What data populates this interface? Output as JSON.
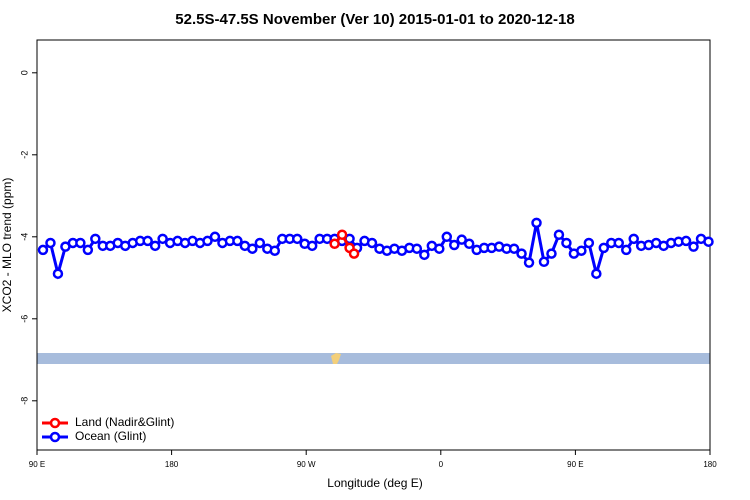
{
  "chart_data": {
    "type": "line",
    "title": "52.5S-47.5S November (Ver 10)   2015-01-01 to 2020-12-18",
    "xlabel": "Longitude (deg E)",
    "ylabel": "XCO2 - MLO trend (ppm)",
    "xlim": [
      90,
      540
    ],
    "xticks": [
      {
        "value": 90,
        "label": "90 E"
      },
      {
        "value": 180,
        "label": "180"
      },
      {
        "value": 270,
        "label": "90 W"
      },
      {
        "value": 360,
        "label": "0"
      },
      {
        "value": 450,
        "label": "90 E"
      },
      {
        "value": 540,
        "label": "180"
      }
    ],
    "ylim": [
      -9.2,
      0.8
    ],
    "yticks": [
      0,
      -2,
      -4,
      -6,
      -8
    ],
    "legend": "bottom-left",
    "series": [
      {
        "name": "Land (Nadir&Glint)",
        "color": "#ff0000",
        "x": [
          289,
          294,
          299,
          302
        ],
        "values": [
          -4.17,
          -3.95,
          -4.27,
          -4.41
        ]
      },
      {
        "name": "Ocean (Glint)",
        "color": "#0000ff",
        "x": [
          94,
          99,
          104,
          109,
          114,
          119,
          124,
          129,
          134,
          139,
          144,
          149,
          154,
          159,
          164,
          169,
          174,
          179,
          184,
          189,
          194,
          199,
          204,
          209,
          214,
          219,
          224,
          229,
          234,
          239,
          244,
          249,
          254,
          259,
          264,
          269,
          274,
          279,
          284,
          289,
          294,
          299,
          304,
          309,
          314,
          319,
          324,
          329,
          334,
          339,
          344,
          349,
          354,
          359,
          364,
          369,
          374,
          379,
          384,
          389,
          394,
          399,
          404,
          409,
          414,
          419,
          424,
          429,
          434,
          439,
          444,
          449,
          454,
          459,
          464,
          469,
          474,
          479,
          484,
          489,
          494,
          499,
          504,
          509,
          514,
          519,
          524,
          529,
          534,
          539
        ],
        "values": [
          -4.32,
          -4.15,
          -4.9,
          -4.24,
          -4.15,
          -4.15,
          -4.32,
          -4.05,
          -4.22,
          -4.22,
          -4.15,
          -4.22,
          -4.15,
          -4.1,
          -4.1,
          -4.22,
          -4.05,
          -4.15,
          -4.1,
          -4.15,
          -4.1,
          -4.15,
          -4.1,
          -4.0,
          -4.15,
          -4.1,
          -4.1,
          -4.22,
          -4.29,
          -4.15,
          -4.29,
          -4.34,
          -4.05,
          -4.05,
          -4.05,
          -4.17,
          -4.22,
          -4.05,
          -4.05,
          -4.05,
          -4.1,
          -4.05,
          -4.27,
          -4.1,
          -4.15,
          -4.29,
          -4.34,
          -4.29,
          -4.34,
          -4.27,
          -4.29,
          -4.44,
          -4.22,
          -4.29,
          -4.0,
          -4.2,
          -4.07,
          -4.17,
          -4.32,
          -4.27,
          -4.27,
          -4.24,
          -4.29,
          -4.29,
          -4.41,
          -4.63,
          -3.66,
          -4.61,
          -4.41,
          -3.95,
          -4.15,
          -4.41,
          -4.34,
          -4.15,
          -4.9,
          -4.27,
          -4.15,
          -4.15,
          -4.32,
          -4.05,
          -4.22,
          -4.2,
          -4.15,
          -4.22,
          -4.15,
          -4.12,
          -4.1,
          -4.24,
          -4.05,
          -4.12
        ]
      }
    ]
  }
}
